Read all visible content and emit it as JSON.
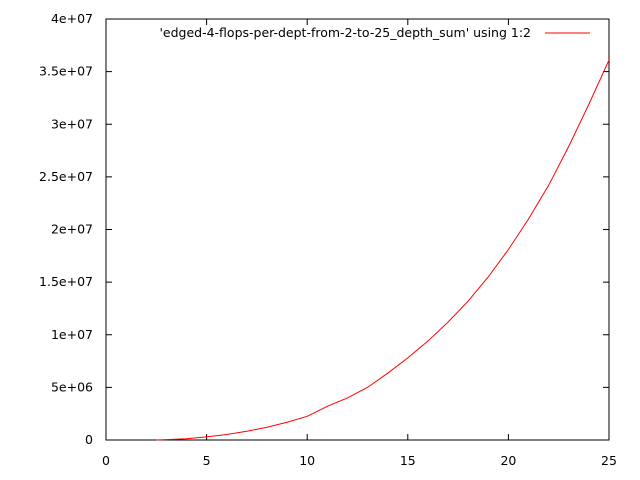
{
  "chart_data": {
    "type": "line",
    "title": "",
    "xlabel": "",
    "ylabel": "",
    "xlim": [
      0,
      25
    ],
    "ylim": [
      0,
      40000000
    ],
    "x_ticks": [
      0,
      5,
      10,
      15,
      20,
      25
    ],
    "x_tick_labels": [
      "0",
      "5",
      "10",
      "15",
      "20",
      "25"
    ],
    "y_ticks": [
      0,
      5000000,
      10000000,
      15000000,
      20000000,
      25000000,
      30000000,
      35000000,
      40000000
    ],
    "y_tick_labels": [
      "0",
      "5e+06",
      "1e+07",
      "1.5e+07",
      "2e+07",
      "2.5e+07",
      "3e+07",
      "3.5e+07",
      "4e+07"
    ],
    "grid": false,
    "legend_position": "top-right",
    "series": [
      {
        "name": "'edged-4-flops-per-dept-from-2-to-25_depth_sum' using 1:2",
        "color": "#ff0000",
        "x": [
          2.5,
          3,
          4,
          5,
          6,
          7,
          8,
          9,
          10,
          11,
          12,
          13,
          14,
          15,
          16,
          17,
          18,
          19,
          20,
          21,
          22,
          23,
          24,
          25
        ],
        "y": [
          0,
          40000,
          120000,
          300000,
          520000,
          830000,
          1210000,
          1690000,
          2250000,
          3200000,
          4000000,
          5000000,
          6350000,
          7800000,
          9400000,
          11200000,
          13200000,
          15500000,
          18100000,
          21000000,
          24200000,
          27900000,
          31900000,
          36100000
        ]
      }
    ]
  }
}
